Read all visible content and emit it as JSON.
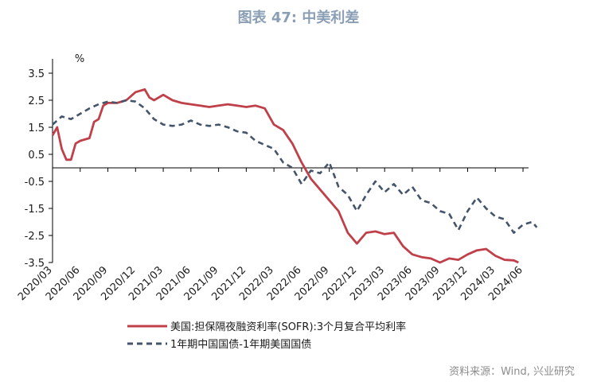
{
  "title": "图表 47: 中美利差",
  "source": "资料来源：Wind, 兴业研究",
  "chart_data": {
    "type": "line",
    "title": "图表 47: 中美利差",
    "ylabel": "%",
    "ylim": [
      -3.5,
      3.5
    ],
    "y_ticks": [
      "3.5",
      "2.5",
      "1.5",
      "0.5",
      "-0.5",
      "-1.5",
      "-2.5",
      "-3.5"
    ],
    "x_ticks": [
      "2020/03",
      "2020/06",
      "2020/09",
      "2020/12",
      "2021/03",
      "2021/06",
      "2021/09",
      "2021/12",
      "2022/03",
      "2022/06",
      "2022/09",
      "2022/12",
      "2023/03",
      "2023/06",
      "2023/09",
      "2023/12",
      "2024/03",
      "2024/06"
    ],
    "grid": false,
    "legend_position": "bottom",
    "series": [
      {
        "name": "美国:担保隔夜融资利率(SOFR):3个月复合平均利率",
        "color": "#c0404a",
        "style": "solid",
        "values": [
          [
            "2020/03",
            1.2
          ],
          [
            "2020/03",
            1.5
          ],
          [
            "2020/04",
            0.7
          ],
          [
            "2020/04",
            0.3
          ],
          [
            "2020/05",
            0.3
          ],
          [
            "2020/05",
            0.9
          ],
          [
            "2020/06",
            1.0
          ],
          [
            "2020/07",
            1.1
          ],
          [
            "2020/07",
            1.7
          ],
          [
            "2020/08",
            1.8
          ],
          [
            "2020/08",
            2.3
          ],
          [
            "2020/09",
            2.4
          ],
          [
            "2020/10",
            2.4
          ],
          [
            "2020/11",
            2.5
          ],
          [
            "2020/12",
            2.8
          ],
          [
            "2021/01",
            2.9
          ],
          [
            "2021/01",
            2.6
          ],
          [
            "2021/02",
            2.5
          ],
          [
            "2021/03",
            2.7
          ],
          [
            "2021/04",
            2.5
          ],
          [
            "2021/05",
            2.4
          ],
          [
            "2021/06",
            2.35
          ],
          [
            "2021/07",
            2.3
          ],
          [
            "2021/08",
            2.25
          ],
          [
            "2021/09",
            2.3
          ],
          [
            "2021/10",
            2.35
          ],
          [
            "2021/11",
            2.3
          ],
          [
            "2021/12",
            2.25
          ],
          [
            "2022/01",
            2.3
          ],
          [
            "2022/02",
            2.2
          ],
          [
            "2022/03",
            1.6
          ],
          [
            "2022/04",
            1.4
          ],
          [
            "2022/05",
            0.9
          ],
          [
            "2022/06",
            0.2
          ],
          [
            "2022/07",
            -0.4
          ],
          [
            "2022/08",
            -0.8
          ],
          [
            "2022/09",
            -1.2
          ],
          [
            "2022/10",
            -1.6
          ],
          [
            "2022/10",
            -2.0
          ],
          [
            "2022/11",
            -2.4
          ],
          [
            "2022/12",
            -2.8
          ],
          [
            "2023/01",
            -2.4
          ],
          [
            "2023/02",
            -2.35
          ],
          [
            "2023/03",
            -2.45
          ],
          [
            "2023/04",
            -2.4
          ],
          [
            "2023/05",
            -2.9
          ],
          [
            "2023/06",
            -3.2
          ],
          [
            "2023/07",
            -3.3
          ],
          [
            "2023/08",
            -3.35
          ],
          [
            "2023/09",
            -3.5
          ],
          [
            "2023/10",
            -3.35
          ],
          [
            "2023/11",
            -3.4
          ],
          [
            "2023/12",
            -3.2
          ],
          [
            "2024/01",
            -3.05
          ],
          [
            "2024/02",
            -3.0
          ],
          [
            "2024/03",
            -3.25
          ],
          [
            "2024/04",
            -3.4
          ],
          [
            "2024/05",
            -3.42
          ],
          [
            "2024/05",
            -3.6
          ]
        ]
      },
      {
        "name": "1年期中国国债-1年期美国国债",
        "color": "#44546a",
        "style": "dashed",
        "values": [
          [
            "2020/03",
            1.6
          ],
          [
            "2020/04",
            1.9
          ],
          [
            "2020/05",
            1.8
          ],
          [
            "2020/06",
            2.0
          ],
          [
            "2020/07",
            2.2
          ],
          [
            "2020/08",
            2.35
          ],
          [
            "2020/09",
            2.45
          ],
          [
            "2020/10",
            2.4
          ],
          [
            "2020/11",
            2.5
          ],
          [
            "2020/12",
            2.45
          ],
          [
            "2021/01",
            2.2
          ],
          [
            "2021/02",
            1.8
          ],
          [
            "2021/03",
            1.6
          ],
          [
            "2021/04",
            1.55
          ],
          [
            "2021/05",
            1.6
          ],
          [
            "2021/06",
            1.75
          ],
          [
            "2021/07",
            1.6
          ],
          [
            "2021/08",
            1.55
          ],
          [
            "2021/09",
            1.6
          ],
          [
            "2021/10",
            1.5
          ],
          [
            "2021/11",
            1.35
          ],
          [
            "2021/12",
            1.3
          ],
          [
            "2022/01",
            1.0
          ],
          [
            "2022/02",
            0.85
          ],
          [
            "2022/03",
            0.7
          ],
          [
            "2022/04",
            0.2
          ],
          [
            "2022/05",
            0.0
          ],
          [
            "2022/06",
            -0.6
          ],
          [
            "2022/07",
            -0.1
          ],
          [
            "2022/08",
            -0.2
          ],
          [
            "2022/09",
            0.2
          ],
          [
            "2022/10",
            -0.7
          ],
          [
            "2022/11",
            -1.0
          ],
          [
            "2022/12",
            -1.6
          ],
          [
            "2023/01",
            -1.0
          ],
          [
            "2023/02",
            -0.5
          ],
          [
            "2023/03",
            -0.9
          ],
          [
            "2023/04",
            -0.6
          ],
          [
            "2023/05",
            -1.0
          ],
          [
            "2023/06",
            -0.7
          ],
          [
            "2023/07",
            -1.2
          ],
          [
            "2023/08",
            -1.3
          ],
          [
            "2023/09",
            -1.6
          ],
          [
            "2023/10",
            -1.7
          ],
          [
            "2023/11",
            -2.3
          ],
          [
            "2023/12",
            -1.6
          ],
          [
            "2024/01",
            -1.1
          ],
          [
            "2024/02",
            -1.5
          ],
          [
            "2024/03",
            -1.8
          ],
          [
            "2024/04",
            -1.9
          ],
          [
            "2024/05",
            -2.4
          ],
          [
            "2024/06",
            -2.1
          ],
          [
            "2024/07",
            -2.0
          ],
          [
            "2024/07",
            -2.2
          ]
        ]
      }
    ]
  }
}
